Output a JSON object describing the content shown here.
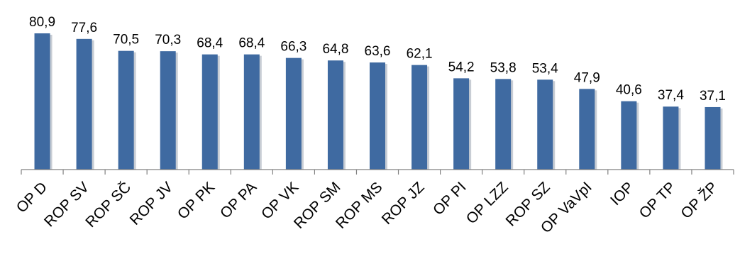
{
  "chart_data": {
    "type": "bar",
    "categories": [
      "OP D",
      "ROP SV",
      "ROP SČ",
      "ROP JV",
      "OP PK",
      "OP PA",
      "OP VK",
      "ROP SM",
      "ROP MS",
      "ROP JZ",
      "OP PI",
      "OP LZZ",
      "ROP SZ",
      "OP VaVpI",
      "IOP",
      "OP TP",
      "OP ŽP"
    ],
    "values": [
      80.9,
      77.6,
      70.5,
      70.3,
      68.4,
      68.4,
      66.3,
      64.8,
      63.6,
      62.1,
      54.2,
      53.8,
      53.4,
      47.9,
      40.6,
      37.4,
      37.1
    ],
    "value_labels": [
      "80,9",
      "77,6",
      "70,5",
      "70,3",
      "68,4",
      "68,4",
      "66,3",
      "64,8",
      "63,6",
      "62,1",
      "54,2",
      "53,8",
      "53,4",
      "47,9",
      "40,6",
      "37,4",
      "37,1"
    ],
    "ylim": [
      0,
      85
    ],
    "grid": false,
    "legend": "none",
    "colors": {
      "bar": "#3f6aa1",
      "shadow": "#c8cdd4",
      "axis": "#808080"
    }
  }
}
